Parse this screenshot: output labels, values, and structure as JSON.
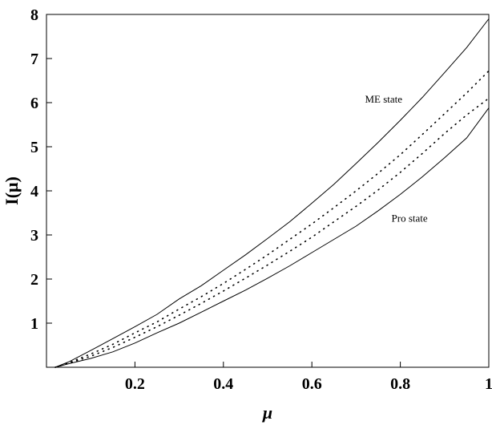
{
  "chart_data": {
    "type": "line",
    "title": "",
    "xlabel": "μ",
    "ylabel": "I(μ)",
    "xlim": [
      0,
      1
    ],
    "ylim": [
      0,
      8
    ],
    "x_ticks": [
      {
        "value": 0.2,
        "label": "0.2"
      },
      {
        "value": 0.4,
        "label": "0.4"
      },
      {
        "value": 0.6,
        "label": "0.6"
      },
      {
        "value": 0.8,
        "label": "0.8"
      },
      {
        "value": 1.0,
        "label": "1"
      }
    ],
    "y_ticks": [
      {
        "value": 1,
        "label": "1"
      },
      {
        "value": 2,
        "label": "2"
      },
      {
        "value": 3,
        "label": "3"
      },
      {
        "value": 4,
        "label": "4"
      },
      {
        "value": 5,
        "label": "5"
      },
      {
        "value": 6,
        "label": "6"
      },
      {
        "value": 7,
        "label": "7"
      },
      {
        "value": 8,
        "label": "8"
      }
    ],
    "grid": false,
    "series": [
      {
        "name": "ME state",
        "style": "solid",
        "x": [
          0.02,
          0.05,
          0.1,
          0.15,
          0.2,
          0.25,
          0.3,
          0.35,
          0.4,
          0.45,
          0.5,
          0.55,
          0.6,
          0.65,
          0.7,
          0.75,
          0.8,
          0.85,
          0.9,
          0.95,
          1.0
        ],
        "y": [
          0.0,
          0.12,
          0.38,
          0.65,
          0.92,
          1.2,
          1.55,
          1.85,
          2.2,
          2.55,
          2.92,
          3.3,
          3.72,
          4.15,
          4.62,
          5.1,
          5.6,
          6.12,
          6.68,
          7.25,
          7.9
        ]
      },
      {
        "style": "dotted",
        "x": [
          0.02,
          0.05,
          0.1,
          0.15,
          0.2,
          0.25,
          0.3,
          0.35,
          0.4,
          0.45,
          0.5,
          0.55,
          0.6,
          0.65,
          0.7,
          0.75,
          0.8,
          0.85,
          0.9,
          0.95,
          1.0
        ],
        "y": [
          0.0,
          0.1,
          0.3,
          0.52,
          0.78,
          1.03,
          1.32,
          1.6,
          1.9,
          2.22,
          2.55,
          2.9,
          3.25,
          3.62,
          4.0,
          4.4,
          4.82,
          5.28,
          5.75,
          6.22,
          6.72
        ]
      },
      {
        "style": "dotted",
        "x": [
          0.02,
          0.05,
          0.1,
          0.15,
          0.2,
          0.25,
          0.3,
          0.35,
          0.4,
          0.45,
          0.5,
          0.55,
          0.6,
          0.65,
          0.7,
          0.75,
          0.8,
          0.85,
          0.9,
          0.95,
          1.0
        ],
        "y": [
          0.0,
          0.09,
          0.25,
          0.45,
          0.68,
          0.92,
          1.18,
          1.45,
          1.73,
          2.02,
          2.32,
          2.63,
          2.95,
          3.3,
          3.65,
          4.02,
          4.42,
          4.85,
          5.3,
          5.72,
          6.1
        ]
      },
      {
        "name": "Pro state",
        "style": "solid",
        "x": [
          0.02,
          0.05,
          0.1,
          0.15,
          0.2,
          0.25,
          0.3,
          0.35,
          0.4,
          0.45,
          0.5,
          0.55,
          0.6,
          0.65,
          0.7,
          0.75,
          0.8,
          0.85,
          0.9,
          0.95,
          1.0
        ],
        "y": [
          0.0,
          0.08,
          0.2,
          0.35,
          0.55,
          0.78,
          1.0,
          1.25,
          1.5,
          1.75,
          2.02,
          2.3,
          2.6,
          2.9,
          3.2,
          3.55,
          3.92,
          4.32,
          4.75,
          5.2,
          5.88
        ]
      }
    ],
    "annotations": [
      {
        "text": "ME state",
        "x": 0.72,
        "y": 6.0
      },
      {
        "text": "Pro state",
        "x": 0.78,
        "y": 3.3
      }
    ]
  }
}
